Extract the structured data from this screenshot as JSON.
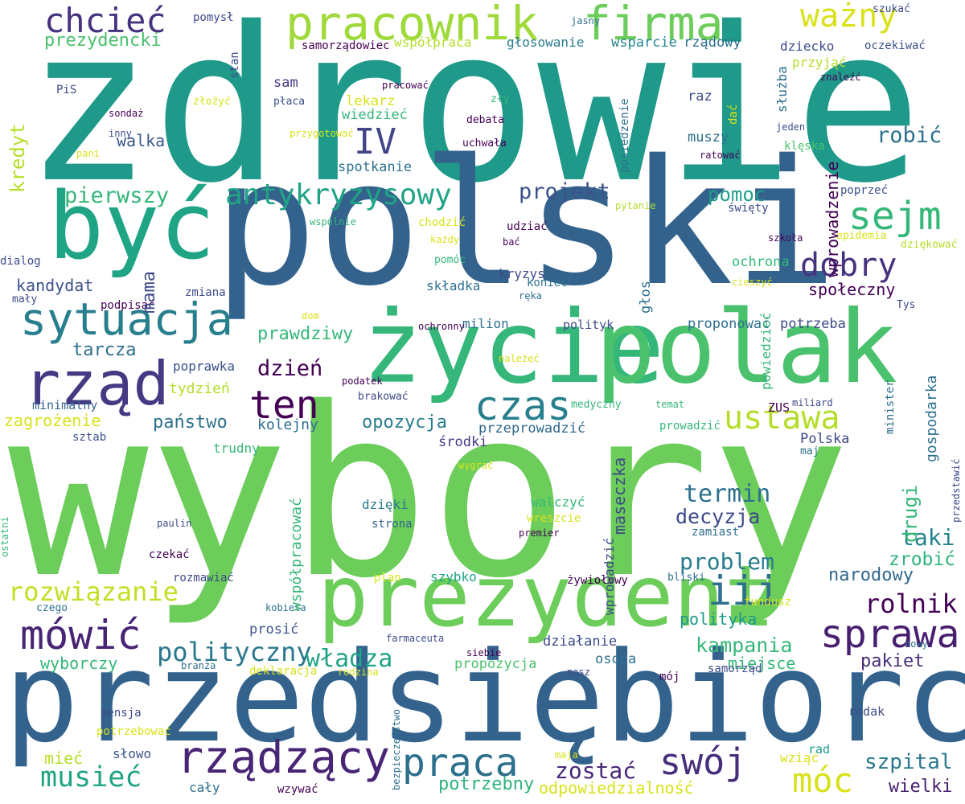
{
  "words": [
    {
      "text": "wybory",
      "color": "#6ccd5a",
      "vertical": false
    },
    {
      "text": "zdrowie",
      "color": "#1f9a8a",
      "vertical": false
    },
    {
      "text": "polski",
      "color": "#33638d",
      "vertical": false
    },
    {
      "text": "przedsiębiorca",
      "color": "#33638d",
      "vertical": false
    },
    {
      "text": "życie",
      "color": "#35b779",
      "vertical": false
    },
    {
      "text": "polak",
      "color": "#4ac16d",
      "vertical": false
    },
    {
      "text": "być",
      "color": "#20a486",
      "vertical": false
    },
    {
      "text": "prezydent",
      "color": "#6ccd5a",
      "vertical": false
    },
    {
      "text": "rząd",
      "color": "#443983",
      "vertical": false
    },
    {
      "text": "sytuacja",
      "color": "#277f8e",
      "vertical": false
    },
    {
      "text": "pracownik",
      "color": "#9fda3a",
      "vertical": false
    },
    {
      "text": "firma",
      "color": "#6ccd5a",
      "vertical": false
    },
    {
      "text": "chcieć",
      "color": "#46327e",
      "vertical": false
    },
    {
      "text": "ważny",
      "color": "#d8e219",
      "vertical": false
    },
    {
      "text": "antykryzysowy",
      "color": "#20a486",
      "vertical": false
    },
    {
      "text": "sejm",
      "color": "#35b779",
      "vertical": false
    },
    {
      "text": "dobry",
      "color": "#46327e",
      "vertical": false
    },
    {
      "text": "czas",
      "color": "#277f8e",
      "vertical": false
    },
    {
      "text": "ten",
      "color": "#440154",
      "vertical": false
    },
    {
      "text": "ustawa",
      "color": "#b5de2b",
      "vertical": false
    },
    {
      "text": "iii",
      "color": "#2d708e",
      "vertical": false
    },
    {
      "text": "sprawa",
      "color": "#481f70",
      "vertical": false
    },
    {
      "text": "mówić",
      "color": "#482475",
      "vertical": false
    },
    {
      "text": "rządzący",
      "color": "#482475",
      "vertical": false
    },
    {
      "text": "praca",
      "color": "#2d708e",
      "vertical": false
    },
    {
      "text": "swój",
      "color": "#472d7b",
      "vertical": false
    },
    {
      "text": "móc",
      "color": "#d8e219",
      "vertical": false
    },
    {
      "text": "musieć",
      "color": "#20a486",
      "vertical": false
    },
    {
      "text": "rozwiązanie",
      "color": "#c2df23",
      "vertical": false
    },
    {
      "text": "polityczny",
      "color": "#2a788e",
      "vertical": false
    },
    {
      "text": "władza",
      "color": "#20a486",
      "vertical": false
    },
    {
      "text": "pierwszy",
      "color": "#35b779",
      "vertical": false
    },
    {
      "text": "projekt",
      "color": "#3b528b",
      "vertical": false
    },
    {
      "text": "pomoc",
      "color": "#1f9e89",
      "vertical": false
    },
    {
      "text": "robić",
      "color": "#2c728e",
      "vertical": false
    },
    {
      "text": "IV",
      "color": "#414487",
      "vertical": false
    },
    {
      "text": "termin",
      "color": "#2d708e",
      "vertical": false
    },
    {
      "text": "problem",
      "color": "#287d8e",
      "vertical": false
    },
    {
      "text": "decyzja",
      "color": "#3e4a89",
      "vertical": false
    },
    {
      "text": "taki",
      "color": "#25848e",
      "vertical": false
    },
    {
      "text": "zrobić",
      "color": "#2fb47c",
      "vertical": false
    },
    {
      "text": "narodowy",
      "color": "#31688e",
      "vertical": false
    },
    {
      "text": "rolnik",
      "color": "#440154",
      "vertical": false
    },
    {
      "text": "kampania",
      "color": "#35b779",
      "vertical": false
    },
    {
      "text": "polityka",
      "color": "#1f9a8a",
      "vertical": false
    },
    {
      "text": "szpital",
      "color": "#2a788e",
      "vertical": false
    },
    {
      "text": "wielki",
      "color": "#481f70",
      "vertical": false
    },
    {
      "text": "pakiet",
      "color": "#472d7b",
      "vertical": false
    },
    {
      "text": "miejsce",
      "color": "#35b779",
      "vertical": false
    },
    {
      "text": "zostać",
      "color": "#482878",
      "vertical": false
    },
    {
      "text": "potrzebny",
      "color": "#2fb47c",
      "vertical": false
    },
    {
      "text": "odpowiedzialność",
      "color": "#d8e219",
      "vertical": false
    },
    {
      "text": "państwo",
      "color": "#2d708e",
      "vertical": false
    },
    {
      "text": "opozycja",
      "color": "#287d8e",
      "vertical": false
    },
    {
      "text": "dzień",
      "color": "#440154",
      "vertical": false
    },
    {
      "text": "tarcza",
      "color": "#2d708e",
      "vertical": false
    },
    {
      "text": "prawdziwy",
      "color": "#35b779",
      "vertical": false
    },
    {
      "text": "kandydat",
      "color": "#3b528b",
      "vertical": false
    },
    {
      "text": "walka",
      "color": "#39568c",
      "vertical": false
    },
    {
      "text": "prezydencki",
      "color": "#4ac16d",
      "vertical": false
    },
    {
      "text": "zagrożenie",
      "color": "#d8e219",
      "vertical": false
    },
    {
      "text": "tydzień",
      "color": "#b5de2b",
      "vertical": false
    },
    {
      "text": "kolejny",
      "color": "#2d708e",
      "vertical": false
    },
    {
      "text": "poprawka",
      "color": "#3b528b",
      "vertical": false
    },
    {
      "text": "minimalny",
      "color": "#33638d",
      "vertical": false
    },
    {
      "text": "sztab",
      "color": "#3b528b",
      "vertical": false
    },
    {
      "text": "trudny",
      "color": "#35b779",
      "vertical": false
    },
    {
      "text": "środki",
      "color": "#443983",
      "vertical": false
    },
    {
      "text": "przeprowadzić",
      "color": "#31688e",
      "vertical": false
    },
    {
      "text": "Polska",
      "color": "#3e4a89",
      "vertical": false
    },
    {
      "text": "ZUS",
      "color": "#440154",
      "vertical": false
    },
    {
      "text": "dzięki",
      "color": "#2a788e",
      "vertical": false
    },
    {
      "text": "strona",
      "color": "#33638d",
      "vertical": false
    },
    {
      "text": "walczyć",
      "color": "#35b779",
      "vertical": false
    },
    {
      "text": "wreszcie",
      "color": "#d8e219",
      "vertical": false
    },
    {
      "text": "premier",
      "color": "#440154",
      "vertical": false
    },
    {
      "text": "szybko",
      "color": "#20a486",
      "vertical": false
    },
    {
      "text": "żywiołowy",
      "color": "#440154",
      "vertical": false
    },
    {
      "text": "prosić",
      "color": "#3b528b",
      "vertical": false
    },
    {
      "text": "działanie",
      "color": "#3e4a89",
      "vertical": false
    },
    {
      "text": "osoba",
      "color": "#2d708e",
      "vertical": false
    },
    {
      "text": "propozycja",
      "color": "#4ac16d",
      "vertical": false
    },
    {
      "text": "wyborczy",
      "color": "#35b779",
      "vertical": false
    },
    {
      "text": "słowo",
      "color": "#3b528b",
      "vertical": false
    },
    {
      "text": "mieć",
      "color": "#b5de2b",
      "vertical": false
    },
    {
      "text": "cały",
      "color": "#2d708e",
      "vertical": false
    },
    {
      "text": "wzywać",
      "color": "#440154",
      "vertical": false
    },
    {
      "text": "rodak",
      "color": "#3e4a89",
      "vertical": false
    },
    {
      "text": "wziąć",
      "color": "#d8e219",
      "vertical": false
    },
    {
      "text": "rad",
      "color": "#1f9a8a",
      "vertical": false
    },
    {
      "text": "mój",
      "color": "#440154",
      "vertical": false
    },
    {
      "text": "samorząd",
      "color": "#3e4a89",
      "vertical": false
    },
    {
      "text": "głosowanie",
      "color": "#287d8e",
      "vertical": false
    },
    {
      "text": "wsparcie",
      "color": "#25848e",
      "vertical": false
    },
    {
      "text": "rządowy",
      "color": "#2d708e",
      "vertical": false
    },
    {
      "text": "współpraca",
      "color": "#b5de2b",
      "vertical": false
    },
    {
      "text": "samorządowiec",
      "color": "#440154",
      "vertical": false
    },
    {
      "text": "dziecko",
      "color": "#3e4a89",
      "vertical": false
    },
    {
      "text": "oczekiwać",
      "color": "#3b528b",
      "vertical": false
    },
    {
      "text": "przyjąć",
      "color": "#b5de2b",
      "vertical": false
    },
    {
      "text": "szukać",
      "color": "#3e4a89",
      "vertical": false
    },
    {
      "text": "sam",
      "color": "#443983",
      "vertical": false
    },
    {
      "text": "płaca",
      "color": "#3b528b",
      "vertical": false
    },
    {
      "text": "lekarz",
      "color": "#d8e219",
      "vertical": false
    },
    {
      "text": "wiedzieć",
      "color": "#35b779",
      "vertical": false
    },
    {
      "text": "raz",
      "color": "#3e4a89",
      "vertical": false
    },
    {
      "text": "muszy",
      "color": "#2d708e",
      "vertical": false
    },
    {
      "text": "klęska",
      "color": "#4ac16d",
      "vertical": false
    },
    {
      "text": "spotkanie",
      "color": "#2d708e",
      "vertical": false
    },
    {
      "text": "uchwała",
      "color": "#440154",
      "vertical": false
    },
    {
      "text": "debata",
      "color": "#440154",
      "vertical": false
    },
    {
      "text": "zły",
      "color": "#35b779",
      "vertical": false
    },
    {
      "text": "pracować",
      "color": "#440154",
      "vertical": false
    },
    {
      "text": "złożyć",
      "color": "#d8e219",
      "vertical": false
    },
    {
      "text": "sondaż",
      "color": "#440154",
      "vertical": false
    },
    {
      "text": "inny",
      "color": "#3e4a89",
      "vertical": false
    },
    {
      "text": "przygotować",
      "color": "#d8e219",
      "vertical": false
    },
    {
      "text": "pani",
      "color": "#d8e219",
      "vertical": false
    },
    {
      "text": "PiS",
      "color": "#3e4a89",
      "vertical": false
    },
    {
      "text": "pomysł",
      "color": "#3e4a89",
      "vertical": false
    },
    {
      "text": "jasny",
      "color": "#2d708e",
      "vertical": false
    },
    {
      "text": "znaleźć",
      "color": "#440154",
      "vertical": false
    },
    {
      "text": "jeden",
      "color": "#3b528b",
      "vertical": false
    },
    {
      "text": "ratować",
      "color": "#440154",
      "vertical": false
    },
    {
      "text": "poprzeć",
      "color": "#3b528b",
      "vertical": false
    },
    {
      "text": "pytanie",
      "color": "#b5de2b",
      "vertical": false
    },
    {
      "text": "święty",
      "color": "#3e4a89",
      "vertical": false
    },
    {
      "text": "ochrona",
      "color": "#35b779",
      "vertical": false
    },
    {
      "text": "społeczny",
      "color": "#440154",
      "vertical": false
    },
    {
      "text": "potrzeba",
      "color": "#3e4a89",
      "vertical": false
    },
    {
      "text": "proponować",
      "color": "#2d708e",
      "vertical": false
    },
    {
      "text": "polityk",
      "color": "#3e4a89",
      "vertical": false
    },
    {
      "text": "milion",
      "color": "#2d708e",
      "vertical": false
    },
    {
      "text": "udziać",
      "color": "#440154",
      "vertical": false
    },
    {
      "text": "bać",
      "color": "#440154",
      "vertical": false
    },
    {
      "text": "chodzić",
      "color": "#d8e219",
      "vertical": false
    },
    {
      "text": "każdy",
      "color": "#d8e219",
      "vertical": false
    },
    {
      "text": "pomóc",
      "color": "#35b779",
      "vertical": false
    },
    {
      "text": "kryzys",
      "color": "#3e4a89",
      "vertical": false
    },
    {
      "text": "składka",
      "color": "#2d708e",
      "vertical": false
    },
    {
      "text": "koniec",
      "color": "#2d708e",
      "vertical": false
    },
    {
      "text": "ręka",
      "color": "#2d708e",
      "vertical": false
    },
    {
      "text": "szkoła",
      "color": "#440154",
      "vertical": false
    },
    {
      "text": "epidemia",
      "color": "#d8e219",
      "vertical": false
    },
    {
      "text": "dziękować",
      "color": "#b5de2b",
      "vertical": false
    },
    {
      "text": "cieszyć",
      "color": "#d8e219",
      "vertical": false
    },
    {
      "text": "Tys",
      "color": "#3e4a89",
      "vertical": false
    },
    {
      "text": "dialog",
      "color": "#3e4a89",
      "vertical": false
    },
    {
      "text": "mały",
      "color": "#3e4a89",
      "vertical": false
    },
    {
      "text": "wspólnie",
      "color": "#35b779",
      "vertical": false
    },
    {
      "text": "zmiana",
      "color": "#3e4a89",
      "vertical": false
    },
    {
      "text": "podpisać",
      "color": "#440154",
      "vertical": false
    },
    {
      "text": "dom",
      "color": "#d8e219",
      "vertical": false
    },
    {
      "text": "ochronny",
      "color": "#440154",
      "vertical": false
    },
    {
      "text": "należeć",
      "color": "#d8e219",
      "vertical": false
    },
    {
      "text": "podatek",
      "color": "#440154",
      "vertical": false
    },
    {
      "text": "brakować",
      "color": "#3e4a89",
      "vertical": false
    },
    {
      "text": "medyczny",
      "color": "#35b779",
      "vertical": false
    },
    {
      "text": "temat",
      "color": "#35b779",
      "vertical": false
    },
    {
      "text": "miliard",
      "color": "#3e4a89",
      "vertical": false
    },
    {
      "text": "prowadzić",
      "color": "#35b779",
      "vertical": false
    },
    {
      "text": "maj",
      "color": "#2d708e",
      "vertical": false
    },
    {
      "text": "wygrać",
      "color": "#d8e219",
      "vertical": false
    },
    {
      "text": "zamiast",
      "color": "#2d708e",
      "vertical": false
    },
    {
      "text": "paulin",
      "color": "#3e4a89",
      "vertical": false
    },
    {
      "text": "czekać",
      "color": "#440154",
      "vertical": false
    },
    {
      "text": "rozmawiać",
      "color": "#3e4a89",
      "vertical": false
    },
    {
      "text": "plan",
      "color": "#d8e219",
      "vertical": false
    },
    {
      "text": "bliski",
      "color": "#2d708e",
      "vertical": false
    },
    {
      "text": "fundusz",
      "color": "#d8e219",
      "vertical": false
    },
    {
      "text": "czego",
      "color": "#2d708e",
      "vertical": false
    },
    {
      "text": "kobieta",
      "color": "#2d708e",
      "vertical": false
    },
    {
      "text": "farmaceuta",
      "color": "#3e4a89",
      "vertical": false
    },
    {
      "text": "siebie",
      "color": "#440154",
      "vertical": false
    },
    {
      "text": "nowy",
      "color": "#2d708e",
      "vertical": false
    },
    {
      "text": "branża",
      "color": "#2d708e",
      "vertical": false
    },
    {
      "text": "deklaracja",
      "color": "#d8e219",
      "vertical": false
    },
    {
      "text": "rodzina",
      "color": "#d8e219",
      "vertical": false
    },
    {
      "text": "nasz",
      "color": "#3e4a89",
      "vertical": false
    },
    {
      "text": "pensja",
      "color": "#3e4a89",
      "vertical": false
    },
    {
      "text": "potrzebować",
      "color": "#d8e219",
      "vertical": false
    },
    {
      "text": "maja",
      "color": "#d8e219",
      "vertical": false
    },
    {
      "text": "bezpieczeństwo",
      "color": "#2d708e",
      "vertical": true
    },
    {
      "text": "kredyt",
      "color": "#b5de2b",
      "vertical": true
    },
    {
      "text": "stan",
      "color": "#3e4a89",
      "vertical": true
    },
    {
      "text": "mama",
      "color": "#3e4a89",
      "vertical": true
    },
    {
      "text": "służba",
      "color": "#2d708e",
      "vertical": true
    },
    {
      "text": "dać",
      "color": "#d8e219",
      "vertical": true
    },
    {
      "text": "posiedzenie",
      "color": "#2d708e",
      "vertical": true
    },
    {
      "text": "wprowadzenie",
      "color": "#440154",
      "vertical": true
    },
    {
      "text": "głos",
      "color": "#2d708e",
      "vertical": true
    },
    {
      "text": "powiedzieć",
      "color": "#35b779",
      "vertical": true
    },
    {
      "text": "minister",
      "color": "#2d708e",
      "vertical": true
    },
    {
      "text": "drugi",
      "color": "#35b779",
      "vertical": true
    },
    {
      "text": "gospodarka",
      "color": "#2d708e",
      "vertical": true
    },
    {
      "text": "maseczka",
      "color": "#3e4a89",
      "vertical": true
    },
    {
      "text": "wprowadzić",
      "color": "#3e4a89",
      "vertical": true
    },
    {
      "text": "współpracować",
      "color": "#35b779",
      "vertical": true
    },
    {
      "text": "ostatni",
      "color": "#35b779",
      "vertical": true
    },
    {
      "text": "przedstawić",
      "color": "#3e4a89",
      "vertical": true
    }
  ]
}
